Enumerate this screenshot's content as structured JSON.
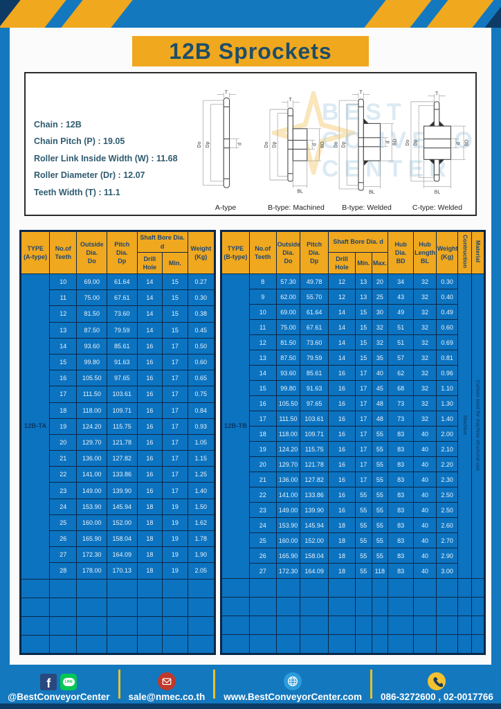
{
  "page": {
    "title": "12B Sprockets"
  },
  "colors": {
    "frame_blue": "#1478BE",
    "banner_yellow": "#F0A81F",
    "cell_blue": "#0C73C0",
    "grid_navy": "#0A2747",
    "title_text": "#1E4D68",
    "footer_divider_yellow": "#E8C227",
    "bottom_strip_navy": "#0D3B66"
  },
  "specs": {
    "lines": [
      "Chain : 12B",
      "Chain Pitch (P) : 19.05",
      "Roller Link Inside Width (W) : 11.68",
      "Roller Diameter (Dr) : 12.07",
      "Teeth Width (T) : 11.1"
    ]
  },
  "diagrams": {
    "captions": [
      "A-type",
      "B-type: Machined",
      "B-type: Welded",
      "C-type: Welded"
    ],
    "dims": {
      "T": "T",
      "Do": "Do",
      "Dp": "Dp",
      "d": "d",
      "BD": "BD",
      "BL": "BL"
    },
    "watermark_lines": [
      "BEST",
      "CONVEYOR",
      "CENTER"
    ]
  },
  "tables": {
    "a": {
      "headers": {
        "type": "TYPE\n(A-type)",
        "teeth": "No.of\nTeeth",
        "outside": "Outside\nDia.\nDo",
        "pitch": "Pitch Dia.\nDp",
        "shaft": "Shaft Bore Dia. d",
        "drill": "Drill Hole",
        "min": "Min.",
        "weight": "Weight\n(Kg)"
      },
      "pre": [
        {
          "text": "12B-TA",
          "cls": "type-cell"
        }
      ],
      "post": [],
      "rows": [
        [
          "10",
          "69.00",
          "61.64",
          "14",
          "15",
          "0.27"
        ],
        [
          "11",
          "75.00",
          "67.61",
          "14",
          "15",
          "0.30"
        ],
        [
          "12",
          "81.50",
          "73.60",
          "14",
          "15",
          "0.38"
        ],
        [
          "13",
          "87.50",
          "79.59",
          "14",
          "15",
          "0.45"
        ],
        [
          "14",
          "93.60",
          "85.61",
          "16",
          "17",
          "0.50"
        ],
        [
          "15",
          "99.80",
          "91.63",
          "16",
          "17",
          "0.60"
        ],
        [
          "16",
          "105.50",
          "97.65",
          "16",
          "17",
          "0.65"
        ],
        [
          "17",
          "111.50",
          "103.61",
          "16",
          "17",
          "0.75"
        ],
        [
          "18",
          "118.00",
          "109.71",
          "16",
          "17",
          "0.84"
        ],
        [
          "19",
          "124.20",
          "115.75",
          "16",
          "17",
          "0.93"
        ],
        [
          "20",
          "129.70",
          "121.78",
          "16",
          "17",
          "1.05"
        ],
        [
          "21",
          "136.00",
          "127.82",
          "16",
          "17",
          "1.15"
        ],
        [
          "22",
          "141.00",
          "133.86",
          "16",
          "17",
          "1.25"
        ],
        [
          "23",
          "149.00",
          "139.90",
          "16",
          "17",
          "1.40"
        ],
        [
          "24",
          "153.90",
          "145.94",
          "18",
          "19",
          "1.50"
        ],
        [
          "25",
          "160.00",
          "152.00",
          "18",
          "19",
          "1.62"
        ],
        [
          "26",
          "165.90",
          "158.04",
          "18",
          "19",
          "1.78"
        ],
        [
          "27",
          "172.30",
          "164.09",
          "18",
          "19",
          "1.90"
        ],
        [
          "28",
          "178.00",
          "170.13",
          "18",
          "19",
          "2.05"
        ]
      ],
      "empty_rows": 4,
      "empty_cols": 7
    },
    "b": {
      "headers": {
        "type": "TYPE\n(B-type)",
        "teeth": "No.of\nTeeth",
        "outside": "Outside\nDia.\nDo",
        "pitch": "Pitch Dia.\nDp",
        "shaft": "Shaft Bore Dia. d",
        "drill": "Drill Hole",
        "min": "Min.",
        "max": "Max.",
        "hub_dia": "Hub Dia.\nBD",
        "hub_len": "Hub\nLength\nBL",
        "weight": "Weight\n(Kg)",
        "construction": "Contruction",
        "material": "Material"
      },
      "pre": [
        {
          "text": "12B-TB",
          "cls": "type-cell"
        }
      ],
      "post": [
        {
          "text": "Machine",
          "cls": "vert-cell"
        },
        {
          "text": "Carbon steel for machine structural use",
          "cls": "vert-cell"
        }
      ],
      "rows": [
        [
          "8",
          "57.30",
          "49.78",
          "12",
          "13",
          "20",
          "34",
          "32",
          "0.30"
        ],
        [
          "9",
          "62.00",
          "55.70",
          "12",
          "13",
          "25",
          "43",
          "32",
          "0.40"
        ],
        [
          "10",
          "69.00",
          "61.64",
          "14",
          "15",
          "30",
          "49",
          "32",
          "0.49"
        ],
        [
          "11",
          "75.00",
          "67.61",
          "14",
          "15",
          "32",
          "51",
          "32",
          "0.60"
        ],
        [
          "12",
          "81.50",
          "73.60",
          "14",
          "15",
          "32",
          "51",
          "32",
          "0.69"
        ],
        [
          "13",
          "87.50",
          "79.59",
          "14",
          "15",
          "35",
          "57",
          "32",
          "0.81"
        ],
        [
          "14",
          "93.60",
          "85.61",
          "16",
          "17",
          "40",
          "62",
          "32",
          "0.96"
        ],
        [
          "15",
          "99.80",
          "91.63",
          "16",
          "17",
          "45",
          "68",
          "32",
          "1.10"
        ],
        [
          "16",
          "105.50",
          "97.65",
          "16",
          "17",
          "48",
          "73",
          "32",
          "1.30"
        ],
        [
          "17",
          "111.50",
          "103.61",
          "16",
          "17",
          "48",
          "73",
          "32",
          "1.40"
        ],
        [
          "18",
          "118.00",
          "109.71",
          "16",
          "17",
          "55",
          "83",
          "40",
          "2.00"
        ],
        [
          "19",
          "124.20",
          "115.75",
          "16",
          "17",
          "55",
          "83",
          "40",
          "2.10"
        ],
        [
          "20",
          "129.70",
          "121.78",
          "16",
          "17",
          "55",
          "83",
          "40",
          "2.20"
        ],
        [
          "21",
          "136.00",
          "127.82",
          "16",
          "17",
          "55",
          "83",
          "40",
          "2.30"
        ],
        [
          "22",
          "141.00",
          "133.86",
          "16",
          "55",
          "55",
          "83",
          "40",
          "2.50"
        ],
        [
          "23",
          "149.00",
          "139.90",
          "16",
          "55",
          "55",
          "83",
          "40",
          "2.50"
        ],
        [
          "24",
          "153.90",
          "145.94",
          "18",
          "55",
          "55",
          "83",
          "40",
          "2.60"
        ],
        [
          "25",
          "160.00",
          "152.00",
          "18",
          "55",
          "55",
          "83",
          "40",
          "2.70"
        ],
        [
          "26",
          "165.90",
          "158.04",
          "18",
          "55",
          "55",
          "83",
          "40",
          "2.90"
        ],
        [
          "27",
          "172.30",
          "164.09",
          "18",
          "55",
          "118",
          "83",
          "40",
          "3.00"
        ]
      ],
      "empty_rows": 4,
      "empty_cols": 12
    }
  },
  "footer": {
    "facebook_label": "f",
    "line_label": "LINE",
    "social": "@BestConveyorCenter",
    "email": "sale@nmec.co.th",
    "website": "www.BestConveyorCenter.com",
    "phone": "086-3272600 , 02-0017766"
  }
}
